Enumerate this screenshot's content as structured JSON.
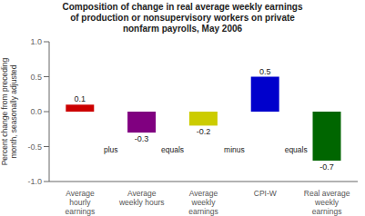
{
  "chart_data": {
    "type": "bar",
    "title": "Composition of change in real average weekly earnings\nof production or nonsupervisory workers on private\nnonfarm payrolls, May 2006",
    "ylabel": "Percent change from preceding\nmonth, seasonally adjusted",
    "categories": [
      "Average\nhourly\nearnings",
      "Average\nweekly hours",
      "Average\nweekly\nearnings",
      "CPI-W",
      "Real average\nweekly\nearnings"
    ],
    "values": [
      0.1,
      -0.3,
      -0.2,
      0.5,
      -0.7
    ],
    "colors": [
      "#cc0000",
      "#800080",
      "#cccc00",
      "#0000cc",
      "#006600"
    ],
    "annotations": [
      "plus",
      "equals",
      "minus",
      "equals"
    ],
    "ylim": [
      -1.0,
      1.0
    ],
    "yticks": [
      {
        "value": -1.0,
        "label": "-1.0"
      },
      {
        "value": -0.5,
        "label": "-0.5"
      },
      {
        "value": 0.0,
        "label": "0.0"
      },
      {
        "value": 0.5,
        "label": "0.5"
      },
      {
        "value": 1.0,
        "label": "1.0"
      }
    ],
    "grid": false,
    "data_labels": true
  }
}
